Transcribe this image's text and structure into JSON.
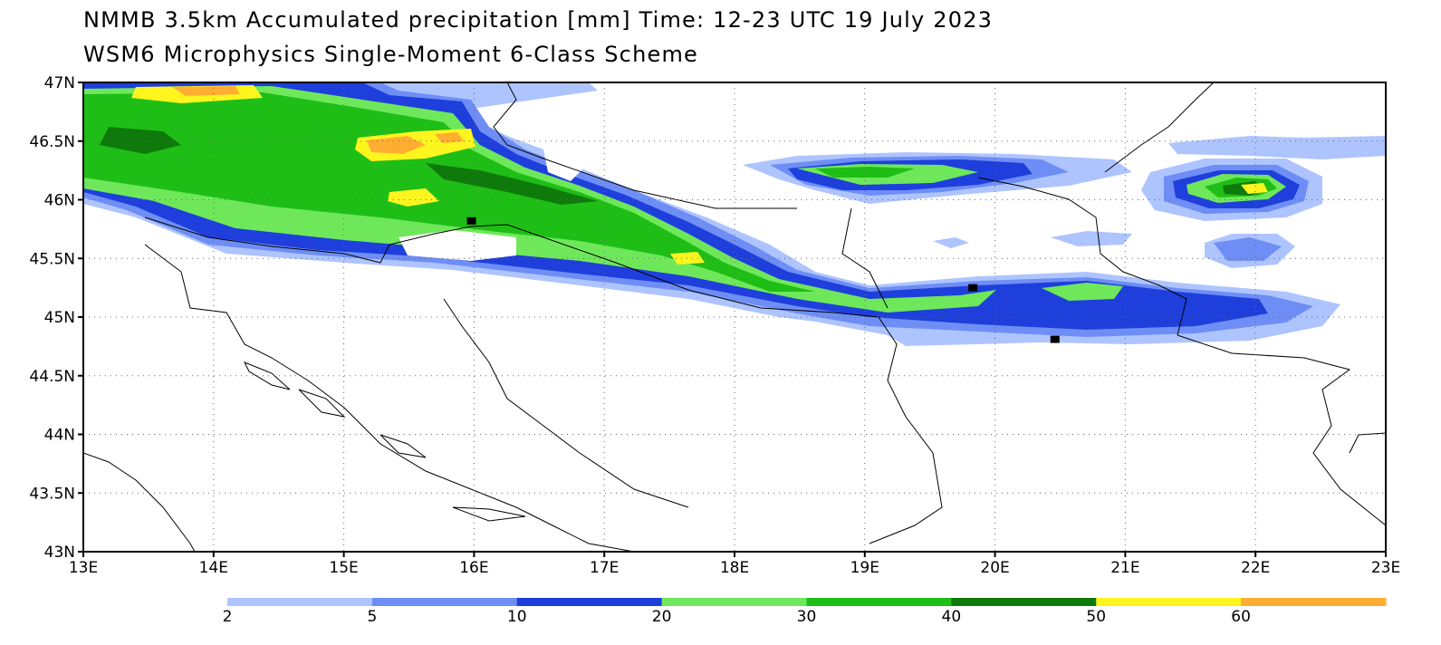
{
  "title_line1": "NMMB 3.5km Accumulated precipitation [mm] Time: 12-23 UTC 19 July 2023",
  "title_line2": "WSM6 Microphysics Single-Moment 6-Class Scheme",
  "map": {
    "projection": "lat-lon",
    "lon_range": [
      13,
      23
    ],
    "lat_range": [
      43,
      47
    ],
    "lon_ticks": [
      "13E",
      "14E",
      "15E",
      "16E",
      "17E",
      "18E",
      "19E",
      "20E",
      "21E",
      "22E",
      "23E"
    ],
    "lat_ticks": [
      "47N",
      "46.5N",
      "46N",
      "45.5N",
      "45N",
      "44.5N",
      "44N",
      "43.5N",
      "43N"
    ],
    "grid": "dotted",
    "station_markers": [
      {
        "lon": 15.98,
        "lat": 45.82
      },
      {
        "lon": 19.83,
        "lat": 45.25
      },
      {
        "lon": 20.46,
        "lat": 44.81
      }
    ]
  },
  "colorbar": {
    "boundaries": [
      "2",
      "5",
      "10",
      "20",
      "30",
      "40",
      "50",
      "60"
    ],
    "colors": [
      "#aec4ff",
      "#6e8ef5",
      "#1f3fdc",
      "#6ee85a",
      "#1fbe16",
      "#0f7a0c",
      "#fff51e",
      "#ffae32"
    ]
  }
}
